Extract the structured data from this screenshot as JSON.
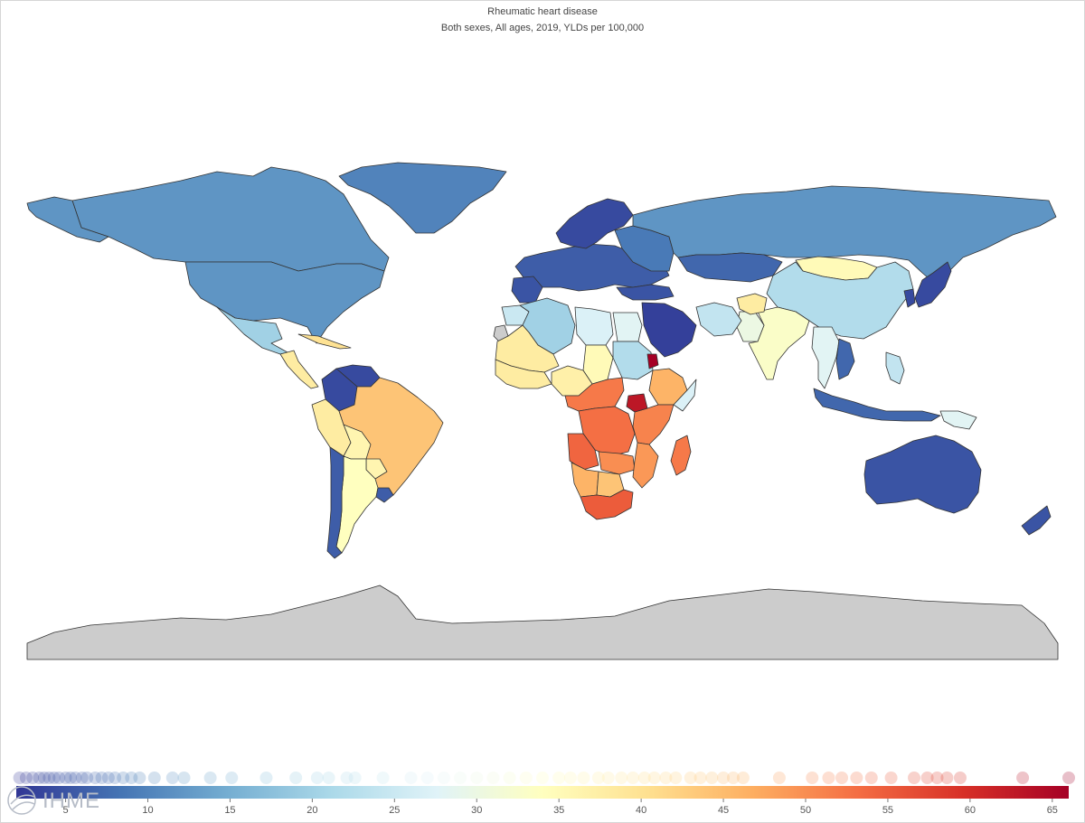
{
  "header": {
    "title": "Rheumatic heart disease",
    "subtitle": "Both sexes, All ages, 2019, YLDs per 100,000"
  },
  "logo": {
    "text": "IHME"
  },
  "colors": {
    "no_data": "#cccccc",
    "border": "#333333",
    "ocean": "#ffffff"
  },
  "legend": {
    "min": 2,
    "max": 66,
    "ticks": [
      5,
      10,
      15,
      20,
      25,
      30,
      35,
      40,
      45,
      50,
      55,
      60,
      65
    ],
    "gradient": [
      "#313695",
      "#4575b4",
      "#74add1",
      "#abd9e9",
      "#e0f3f8",
      "#ffffbf",
      "#fee090",
      "#fdae61",
      "#f46d43",
      "#d73027",
      "#a50026"
    ],
    "values": [
      2.2,
      2.6,
      3.0,
      3.4,
      3.7,
      4.0,
      4.3,
      4.6,
      5.0,
      5.3,
      5.6,
      6.0,
      6.3,
      6.8,
      7.2,
      7.6,
      8.0,
      8.5,
      9.0,
      9.5,
      10.4,
      11.5,
      12.2,
      13.8,
      15.1,
      17.2,
      19.0,
      20.3,
      21.0,
      22.1,
      22.6,
      24.3,
      26.0,
      27.0,
      28.0,
      29.0,
      30.0,
      31.0,
      32.0,
      33.0,
      34.0,
      35.0,
      35.7,
      36.5,
      37.4,
      38.0,
      38.8,
      39.5,
      40.2,
      40.8,
      41.5,
      42.1,
      43.0,
      43.6,
      44.3,
      45.0,
      45.6,
      46.2,
      48.4,
      50.4,
      51.4,
      52.2,
      53.1,
      54.0,
      55.2,
      56.6,
      57.4,
      58.0,
      58.6,
      59.4,
      63.2,
      66.0
    ]
  },
  "map_data": {
    "regions": [
      {
        "name": "Canada",
        "value": 12
      },
      {
        "name": "United States",
        "value": 12
      },
      {
        "name": "Greenland",
        "value": 10
      },
      {
        "name": "Alaska",
        "value": 12
      },
      {
        "name": "Mexico",
        "value": 20
      },
      {
        "name": "Central America",
        "value": 38
      },
      {
        "name": "Caribbean",
        "value": 40
      },
      {
        "name": "Venezuela",
        "value": 4
      },
      {
        "name": "Colombia",
        "value": 4
      },
      {
        "name": "Peru",
        "value": 38
      },
      {
        "name": "Brazil",
        "value": 44
      },
      {
        "name": "Bolivia",
        "value": 36
      },
      {
        "name": "Paraguay",
        "value": 36
      },
      {
        "name": "Argentina",
        "value": 34
      },
      {
        "name": "Chile",
        "value": 6
      },
      {
        "name": "Uruguay",
        "value": 6
      },
      {
        "name": "Europe",
        "value": 6
      },
      {
        "name": "Scandinavia",
        "value": 4
      },
      {
        "name": "Iberia",
        "value": 5
      },
      {
        "name": "Eastern Europe",
        "value": 9
      },
      {
        "name": "Russia",
        "value": 12
      },
      {
        "name": "Kazakhstan",
        "value": 7
      },
      {
        "name": "Mongolia",
        "value": 35
      },
      {
        "name": "China",
        "value": 22
      },
      {
        "name": "India",
        "value": 33
      },
      {
        "name": "Pakistan",
        "value": 30
      },
      {
        "name": "Afghanistan",
        "value": 38
      },
      {
        "name": "Iran",
        "value": 24
      },
      {
        "name": "Saudi Arabia",
        "value": 3
      },
      {
        "name": "Turkey",
        "value": 5
      },
      {
        "name": "Korea",
        "value": 4
      },
      {
        "name": "Japan",
        "value": 4
      },
      {
        "name": "Mainland Southeast Asia",
        "value": 28
      },
      {
        "name": "Vietnam",
        "value": 7
      },
      {
        "name": "Indonesia",
        "value": 7
      },
      {
        "name": "Philippines",
        "value": 24
      },
      {
        "name": "Papua New Guinea",
        "value": 28
      },
      {
        "name": "Australia",
        "value": 5
      },
      {
        "name": "New Zealand",
        "value": 5
      },
      {
        "name": "Morocco",
        "value": 25
      },
      {
        "name": "Algeria",
        "value": 20
      },
      {
        "name": "Libya",
        "value": 27
      },
      {
        "name": "Egypt",
        "value": 28
      },
      {
        "name": "Western Sahara",
        "value": null
      },
      {
        "name": "Sahel West",
        "value": 38
      },
      {
        "name": "Chad",
        "value": 35
      },
      {
        "name": "Sudan",
        "value": 22
      },
      {
        "name": "West Africa Coast",
        "value": 38
      },
      {
        "name": "Nigeria",
        "value": 37
      },
      {
        "name": "Ethiopia",
        "value": 46
      },
      {
        "name": "Somalia",
        "value": 27
      },
      {
        "name": "Central Africa",
        "value": 52
      },
      {
        "name": "DR Congo",
        "value": 53
      },
      {
        "name": "East Africa",
        "value": 51
      },
      {
        "name": "Uganda",
        "value": 63
      },
      {
        "name": "Eritrea",
        "value": 66
      },
      {
        "name": "Angola",
        "value": 54
      },
      {
        "name": "Zambia",
        "value": 50
      },
      {
        "name": "Namibia",
        "value": 46
      },
      {
        "name": "Botswana",
        "value": 44
      },
      {
        "name": "South Africa",
        "value": 55
      },
      {
        "name": "Mozambique",
        "value": 49
      },
      {
        "name": "Madagascar",
        "value": 52
      },
      {
        "name": "Antarctica",
        "value": null
      }
    ]
  }
}
